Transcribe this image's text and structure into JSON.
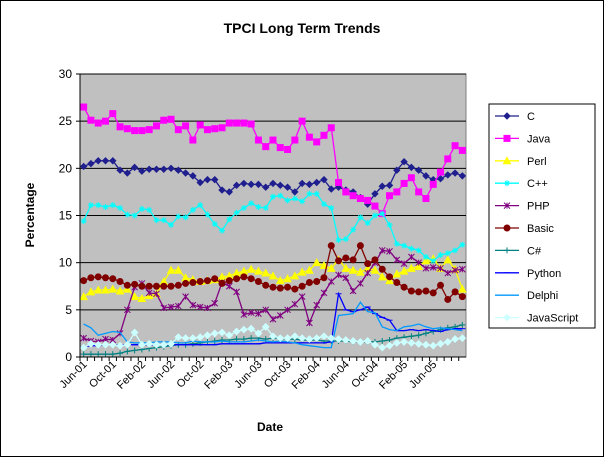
{
  "chart_data": {
    "type": "line",
    "title": "TPCI Long Term Trends",
    "xlabel": "Date",
    "ylabel": "Percentage",
    "ylim": [
      0,
      30
    ],
    "yticks": [
      0,
      5,
      10,
      15,
      20,
      25,
      30
    ],
    "grid": "horizontal major gridlines",
    "legend_position": "right",
    "x_tick_labels": [
      "Jun-01",
      "Oct-01",
      "Feb-02",
      "Jun-02",
      "Oct-02",
      "Feb-03",
      "Jun-03",
      "Oct-03",
      "Feb-04",
      "Jun-04",
      "Oct-04",
      "Feb-05",
      "Jun-05"
    ],
    "x": [
      "2001-06",
      "2001-07",
      "2001-08",
      "2001-09",
      "2001-10",
      "2001-11",
      "2001-12",
      "2002-01",
      "2002-02",
      "2002-03",
      "2002-04",
      "2002-05",
      "2002-06",
      "2002-07",
      "2002-08",
      "2002-09",
      "2002-10",
      "2002-11",
      "2002-12",
      "2003-01",
      "2003-02",
      "2003-03",
      "2003-04",
      "2003-05",
      "2003-06",
      "2003-07",
      "2003-08",
      "2003-09",
      "2003-10",
      "2003-11",
      "2003-12",
      "2004-01",
      "2004-02",
      "2004-03",
      "2004-04",
      "2004-05",
      "2004-06",
      "2004-07",
      "2004-08",
      "2004-09",
      "2004-10",
      "2004-11",
      "2004-12",
      "2005-01",
      "2005-02",
      "2005-03",
      "2005-04",
      "2005-05",
      "2005-06",
      "2005-07",
      "2005-08",
      "2005-09",
      "2005-10"
    ],
    "series": [
      {
        "name": "C",
        "color": "#1f1f8f",
        "marker": "diamond",
        "values": [
          20.2,
          20.5,
          20.8,
          20.8,
          20.8,
          19.8,
          19.5,
          20.1,
          19.7,
          19.9,
          19.9,
          19.9,
          20.0,
          19.8,
          19.5,
          19.2,
          18.5,
          18.8,
          18.8,
          17.7,
          17.5,
          18.2,
          18.4,
          18.3,
          18.3,
          18.0,
          18.4,
          18.2,
          18.0,
          17.5,
          18.4,
          18.3,
          18.5,
          18.8,
          17.8,
          18.0,
          17.7,
          17.5,
          16.9,
          16.2,
          17.3,
          18.1,
          18.2,
          19.8,
          20.7,
          20.1,
          19.8,
          19.2,
          18.8,
          18.9,
          19.3,
          19.5,
          19.2
        ]
      },
      {
        "name": "Java",
        "color": "#ff00ff",
        "marker": "square",
        "values": [
          26.5,
          25.1,
          24.8,
          25.0,
          25.8,
          24.4,
          24.2,
          24.0,
          24.0,
          24.1,
          24.5,
          25.1,
          25.2,
          24.1,
          24.5,
          23.0,
          24.6,
          24.1,
          24.2,
          24.3,
          24.8,
          24.8,
          24.8,
          24.7,
          23.0,
          22.3,
          23.0,
          22.2,
          22.0,
          23.0,
          25.0,
          23.3,
          22.8,
          23.5,
          24.3,
          18.5,
          17.5,
          17.1,
          16.8,
          16.6,
          16.0,
          15.2,
          17.1,
          17.5,
          18.4,
          19.0,
          17.5,
          16.8,
          18.3,
          19.6,
          21.0,
          22.4,
          21.9
        ]
      },
      {
        "name": "Perl",
        "color": "#ffff00",
        "marker": "triangle",
        "values": [
          6.4,
          6.9,
          7.1,
          7.1,
          7.2,
          7.0,
          7.2,
          6.4,
          6.2,
          6.5,
          6.7,
          8.0,
          9.2,
          9.2,
          8.4,
          8.2,
          8.0,
          8.1,
          8.2,
          8.5,
          8.6,
          8.9,
          9.1,
          9.3,
          9.1,
          8.9,
          8.6,
          8.1,
          8.3,
          8.6,
          9.0,
          9.2,
          10.0,
          9.7,
          9.4,
          10.3,
          9.4,
          9.2,
          9.0,
          9.4,
          9.2,
          8.5,
          8.1,
          8.8,
          9.1,
          9.4,
          9.6,
          10.2,
          10.4,
          9.4,
          10.3,
          9.3,
          7.2
        ]
      },
      {
        "name": "C++",
        "color": "#00ffff",
        "marker": "star",
        "values": [
          14.4,
          16.1,
          16.1,
          15.9,
          16.1,
          15.8,
          15.1,
          15.0,
          15.7,
          15.6,
          14.5,
          14.5,
          14.0,
          14.9,
          14.8,
          15.6,
          16.1,
          15.1,
          14.1,
          13.4,
          14.6,
          15.3,
          15.8,
          16.3,
          15.9,
          15.8,
          17.0,
          17.1,
          16.6,
          16.8,
          16.5,
          17.3,
          17.3,
          16.2,
          15.8,
          12.4,
          12.5,
          13.5,
          14.8,
          14.2,
          15.0,
          15.2,
          14.0,
          12.0,
          11.8,
          11.5,
          11.3,
          10.6,
          10.2,
          10.8,
          11.0,
          11.3,
          11.9
        ]
      },
      {
        "name": "PHP",
        "color": "#800080",
        "marker": "asterisk",
        "values": [
          2.0,
          1.7,
          1.6,
          1.9,
          1.8,
          2.5,
          5.0,
          7.4,
          7.8,
          6.8,
          6.7,
          5.2,
          5.3,
          5.4,
          6.4,
          5.5,
          5.3,
          5.2,
          5.7,
          7.9,
          7.5,
          6.9,
          4.5,
          4.7,
          4.6,
          5.0,
          4.0,
          4.4,
          5.0,
          5.6,
          6.4,
          3.6,
          5.5,
          6.8,
          8.0,
          8.7,
          8.4,
          7.0,
          7.8,
          8.9,
          10.0,
          11.3,
          11.2,
          10.3,
          9.9,
          10.6,
          10.0,
          9.4,
          9.5,
          9.4,
          8.9,
          9.2,
          9.3
        ]
      },
      {
        "name": "Basic",
        "color": "#800000",
        "marker": "circle",
        "values": [
          8.1,
          8.4,
          8.5,
          8.4,
          8.3,
          8.0,
          7.6,
          7.7,
          7.5,
          7.5,
          7.5,
          7.5,
          7.5,
          7.6,
          7.8,
          7.9,
          8.0,
          8.1,
          8.3,
          7.8,
          8.1,
          8.3,
          8.5,
          8.3,
          8.0,
          7.6,
          7.4,
          7.3,
          7.4,
          7.2,
          7.5,
          7.9,
          8.0,
          8.4,
          11.8,
          10.2,
          10.5,
          10.3,
          11.8,
          9.9,
          10.3,
          9.3,
          8.5,
          7.9,
          7.4,
          7.0,
          6.9,
          7.0,
          6.8,
          7.6,
          6.1,
          6.9,
          6.4
        ]
      },
      {
        "name": "C#",
        "color": "#008080",
        "marker": "plus",
        "values": [
          0.3,
          0.3,
          0.3,
          0.3,
          0.3,
          0.4,
          0.6,
          0.7,
          0.8,
          0.9,
          1.0,
          1.1,
          1.2,
          1.3,
          1.3,
          1.4,
          1.5,
          1.6,
          1.7,
          1.8,
          1.8,
          1.9,
          1.9,
          2.0,
          2.0,
          1.9,
          2.0,
          2.0,
          1.9,
          1.9,
          1.8,
          1.8,
          1.8,
          1.7,
          1.7,
          1.7,
          1.7,
          1.6,
          1.6,
          1.6,
          1.6,
          1.7,
          1.8,
          2.0,
          2.1,
          2.2,
          2.3,
          2.5,
          2.7,
          2.9,
          3.1,
          3.2,
          3.4
        ]
      },
      {
        "name": "Python",
        "color": "#0000ff",
        "marker": "dash",
        "values": [
          1.1,
          1.2,
          1.2,
          1.3,
          1.3,
          1.3,
          1.3,
          1.3,
          1.3,
          1.3,
          1.3,
          1.3,
          1.3,
          1.3,
          1.3,
          1.3,
          1.3,
          1.3,
          1.3,
          1.4,
          1.4,
          1.4,
          1.4,
          1.4,
          1.4,
          1.5,
          1.5,
          1.5,
          1.5,
          1.5,
          1.5,
          1.5,
          1.5,
          1.5,
          1.6,
          6.7,
          5.0,
          4.8,
          5.0,
          5.3,
          4.6,
          4.2,
          3.9,
          2.8,
          2.8,
          2.9,
          2.8,
          2.9,
          2.8,
          2.7,
          2.9,
          3.0,
          3.0
        ]
      },
      {
        "name": "Delphi",
        "color": "#0099ff",
        "marker": "line",
        "values": [
          3.5,
          3.1,
          2.3,
          2.5,
          2.7,
          2.6,
          1.6,
          1.5,
          1.5,
          1.5,
          1.6,
          1.6,
          1.6,
          1.5,
          1.5,
          1.7,
          1.6,
          1.6,
          1.6,
          1.7,
          1.6,
          1.6,
          1.6,
          1.7,
          1.8,
          1.7,
          1.6,
          1.7,
          1.6,
          1.5,
          1.3,
          1.2,
          1.1,
          1.0,
          1.0,
          4.4,
          4.5,
          4.6,
          5.8,
          4.8,
          4.7,
          3.2,
          2.9,
          2.8,
          3.2,
          3.3,
          3.5,
          3.2,
          3.0,
          3.1,
          3.0,
          2.9,
          2.8
        ]
      },
      {
        "name": "JavaScript",
        "color": "#ccffff",
        "marker": "diamond",
        "values": [
          1.0,
          1.4,
          1.3,
          1.3,
          1.3,
          1.2,
          1.3,
          2.6,
          1.3,
          1.4,
          1.3,
          1.3,
          1.4,
          2.1,
          2.0,
          2.0,
          2.1,
          2.3,
          2.5,
          2.6,
          2.3,
          2.7,
          2.9,
          3.0,
          2.5,
          3.2,
          2.2,
          2.0,
          2.0,
          2.2,
          2.0,
          1.9,
          2.0,
          2.2,
          2.0,
          1.9,
          1.8,
          1.7,
          1.6,
          1.7,
          1.3,
          1.0,
          1.2,
          1.5,
          1.6,
          1.5,
          1.4,
          1.3,
          1.2,
          1.4,
          1.6,
          1.9,
          2.0
        ]
      }
    ]
  }
}
